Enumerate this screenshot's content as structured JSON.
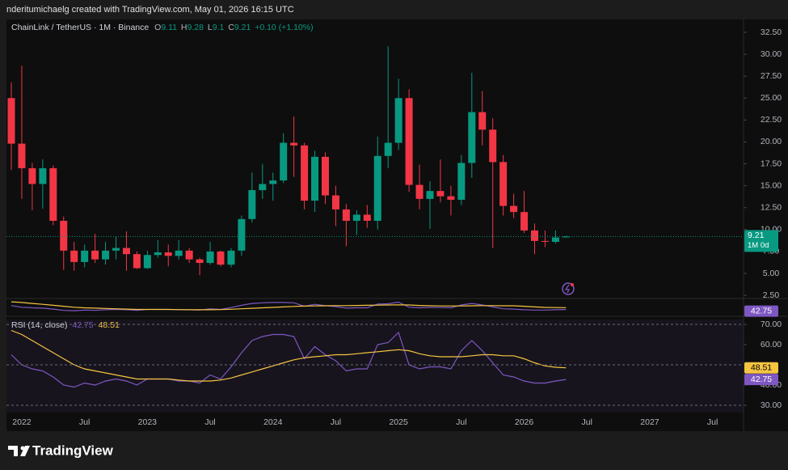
{
  "header": {
    "attribution": "nderitumichaelg created with TradingView.com, May 01, 2026 16:15 UTC"
  },
  "footer": {
    "brand": "TradingView"
  },
  "chart_data": [
    {
      "type": "candlestick",
      "legend": {
        "symbol": "ChainLink / TetherUS · 1M · Binance",
        "labels": [
          "O",
          "H",
          "L",
          "C"
        ],
        "change": "+0.10 (+1.10%)",
        "interval_badge": "1M 0d"
      },
      "x": [
        "2021-12",
        "2022-01",
        "2022-02",
        "2022-03",
        "2022-04",
        "2022-05",
        "2022-06",
        "2022-07",
        "2022-08",
        "2022-09",
        "2022-10",
        "2022-11",
        "2022-12",
        "2023-01",
        "2023-02",
        "2023-03",
        "2023-04",
        "2023-05",
        "2023-06",
        "2023-07",
        "2023-08",
        "2023-09",
        "2023-10",
        "2023-11",
        "2023-12",
        "2024-01",
        "2024-02",
        "2024-03",
        "2024-04",
        "2024-05",
        "2024-06",
        "2024-07",
        "2024-08",
        "2024-09",
        "2024-10",
        "2024-11",
        "2024-12",
        "2025-01",
        "2025-02",
        "2025-03",
        "2025-04",
        "2025-05",
        "2025-06",
        "2025-07",
        "2025-08",
        "2025-09",
        "2025-10",
        "2025-11",
        "2025-12",
        "2026-01",
        "2026-02",
        "2026-03",
        "2026-04",
        "2026-05"
      ],
      "open": [
        25.0,
        19.8,
        17.0,
        15.2,
        17.0,
        11.0,
        7.6,
        6.3,
        7.6,
        6.6,
        7.6,
        7.9,
        7.2,
        5.6,
        7.1,
        7.4,
        7.0,
        7.6,
        6.6,
        6.2,
        7.5,
        6.0,
        7.6,
        11.2,
        14.5,
        15.2,
        15.6,
        19.9,
        19.6,
        13.3,
        18.3,
        13.9,
        12.3,
        11.0,
        11.7,
        11.0,
        18.4,
        19.9,
        25.0,
        15.1,
        13.5,
        14.4,
        13.8,
        13.4,
        17.6,
        23.4,
        21.4,
        17.7,
        12.7,
        12.0,
        9.9,
        8.7,
        8.6,
        9.11
      ],
      "high": [
        26.8,
        28.7,
        17.6,
        18.0,
        17.3,
        11.5,
        8.6,
        8.3,
        9.5,
        8.6,
        9.2,
        9.8,
        7.5,
        7.6,
        8.8,
        8.3,
        8.8,
        7.9,
        6.8,
        8.6,
        7.6,
        7.9,
        11.6,
        16.5,
        17.5,
        16.5,
        21.0,
        22.9,
        19.9,
        19.0,
        18.8,
        15.0,
        12.9,
        12.2,
        12.8,
        20.6,
        30.9,
        27.2,
        26.0,
        17.4,
        15.5,
        18.0,
        15.0,
        18.5,
        27.9,
        25.8,
        22.7,
        18.5,
        14.1,
        14.4,
        10.7,
        9.9,
        9.9,
        9.28
      ],
      "low": [
        16.8,
        13.5,
        12.2,
        12.4,
        10.5,
        5.4,
        5.3,
        5.7,
        6.2,
        6.0,
        6.6,
        5.3,
        5.5,
        5.5,
        6.8,
        5.8,
        6.6,
        6.2,
        4.8,
        6.0,
        5.8,
        5.7,
        7.0,
        10.8,
        13.5,
        13.3,
        15.3,
        16.0,
        12.3,
        12.0,
        12.9,
        10.4,
        8.1,
        9.4,
        10.2,
        10.0,
        17.0,
        19.1,
        14.3,
        12.3,
        10.1,
        13.1,
        11.6,
        12.8,
        15.9,
        19.6,
        7.9,
        11.6,
        11.3,
        9.6,
        7.2,
        8.0,
        8.4,
        9.1
      ],
      "close": [
        19.8,
        17.0,
        15.2,
        17.0,
        11.0,
        7.6,
        6.3,
        7.6,
        6.6,
        7.6,
        7.9,
        7.2,
        5.6,
        7.1,
        7.4,
        7.0,
        7.6,
        6.6,
        6.2,
        7.5,
        6.0,
        7.6,
        11.2,
        14.5,
        15.2,
        15.6,
        19.9,
        19.6,
        13.3,
        18.3,
        13.9,
        12.3,
        11.0,
        11.7,
        11.0,
        18.4,
        19.9,
        25.0,
        15.1,
        13.5,
        14.4,
        13.8,
        13.4,
        17.6,
        23.4,
        21.4,
        17.7,
        12.7,
        12.0,
        9.9,
        8.7,
        8.6,
        9.1,
        9.21
      ],
      "up_color": "#089981",
      "down_color": "#f23645",
      "ylim": [
        2.23,
        33.42
      ],
      "yticks": [
        {
          "value": 2.5,
          "label": "2.50"
        },
        {
          "value": 5,
          "label": "5.00"
        },
        {
          "value": 7.5,
          "label": "7.50"
        },
        {
          "value": 10,
          "label": "10.00"
        },
        {
          "value": 12.5,
          "label": "12.50"
        },
        {
          "value": 15,
          "label": "15.00"
        },
        {
          "value": 17.5,
          "label": "17.50"
        },
        {
          "value": 20,
          "label": "20.00"
        },
        {
          "value": 22.5,
          "label": "22.50"
        },
        {
          "value": 25,
          "label": "25.00"
        },
        {
          "value": 27.5,
          "label": "27.50"
        },
        {
          "value": 30,
          "label": "30.00"
        },
        {
          "value": 32.5,
          "label": "32.50"
        }
      ],
      "xticks": [
        {
          "value": "2022-01",
          "label": "2022"
        },
        {
          "value": "2022-07",
          "label": "Jul"
        },
        {
          "value": "2023-01",
          "label": "2023"
        },
        {
          "value": "2023-07",
          "label": "Jul"
        },
        {
          "value": "2024-01",
          "label": "2024"
        },
        {
          "value": "2024-07",
          "label": "Jul"
        },
        {
          "value": "2025-01",
          "label": "2025"
        },
        {
          "value": "2025-07",
          "label": "Jul"
        },
        {
          "value": "2026-01",
          "label": "2026"
        },
        {
          "value": "2026-07",
          "label": "Jul"
        },
        {
          "value": "2027-01",
          "label": "2027"
        },
        {
          "value": "2027-07",
          "label": "Jul"
        }
      ],
      "last_price_line": true
    },
    {
      "type": "line",
      "title": "RSI (14, close)",
      "series": [
        {
          "color": "#7e57c2",
          "values": [
            55,
            50,
            48,
            47,
            44,
            40,
            39,
            41,
            40,
            42,
            43,
            42,
            40,
            43,
            43,
            43,
            42,
            42,
            41,
            45,
            43,
            49,
            56,
            62,
            64,
            65,
            65,
            64,
            53,
            59,
            55,
            52,
            47,
            48,
            48,
            60,
            61,
            66,
            50,
            48,
            49,
            49,
            48,
            57,
            62,
            57,
            51,
            45,
            44,
            42,
            41,
            41,
            42,
            42.75
          ]
        },
        {
          "color": "#f5c542",
          "values": [
            67,
            65,
            62,
            59,
            56,
            53,
            50,
            48,
            47,
            46,
            45,
            44,
            43,
            43,
            43,
            43,
            42.5,
            42,
            42,
            42,
            42.5,
            43.5,
            45,
            46.5,
            48,
            49.5,
            51,
            52.5,
            53.5,
            54,
            54.5,
            55,
            55,
            55.5,
            56,
            56.5,
            57,
            57.5,
            57,
            55.5,
            54.5,
            54,
            54,
            54,
            54.5,
            55,
            55,
            54.5,
            54.5,
            53,
            51,
            49.5,
            48.8,
            48.51
          ]
        }
      ],
      "ylim": [
        26.4,
        72.4
      ],
      "yticks": [
        {
          "value": 30,
          "label": "30.00"
        },
        {
          "value": 40,
          "label": "40.00"
        },
        {
          "value": 60,
          "label": "60.00"
        },
        {
          "value": 70,
          "label": "70.00"
        }
      ],
      "hlines": [
        70,
        50,
        30
      ]
    }
  ]
}
